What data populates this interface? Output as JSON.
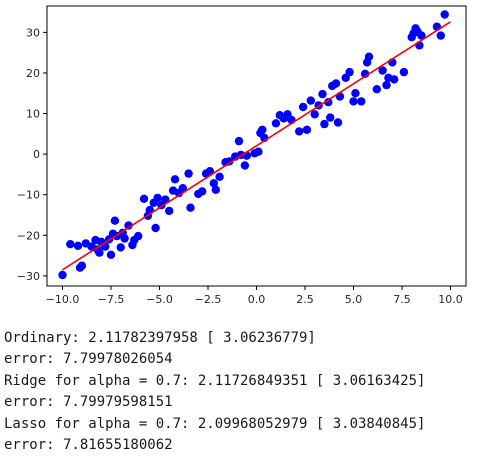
{
  "chart_data": {
    "type": "scatter",
    "title": "",
    "xlabel": "",
    "ylabel": "",
    "xlim": [
      -10.8,
      10.8
    ],
    "ylim": [
      -32.5,
      36.5
    ],
    "x_ticks": [
      -10,
      -7.5,
      -5,
      -2.5,
      0,
      2.5,
      5,
      7.5,
      10
    ],
    "x_tick_labels": [
      "−10.0",
      "−7.5",
      "−5.0",
      "−2.5",
      "0.0",
      "2.5",
      "5.0",
      "7.5",
      "10.0"
    ],
    "y_ticks": [
      -30,
      -20,
      -10,
      0,
      10,
      20,
      30
    ],
    "y_tick_labels": [
      "−30",
      "−20",
      "−10",
      "0",
      "10",
      "20",
      "30"
    ],
    "grid": false,
    "legend": "none",
    "series": [
      {
        "kind": "scatter",
        "color": "#0000ff",
        "points": [
          [
            -10.0,
            -29.8
          ],
          [
            -9.6,
            -22.2
          ],
          [
            -9.2,
            -22.6
          ],
          [
            -9.1,
            -28.0
          ],
          [
            -9.0,
            -27.5
          ],
          [
            -8.8,
            -22.0
          ],
          [
            -8.5,
            -22.8
          ],
          [
            -8.3,
            -21.2
          ],
          [
            -8.2,
            -23.5
          ],
          [
            -8.1,
            -24.3
          ],
          [
            -8.0,
            -21.6
          ],
          [
            -7.8,
            -22.8
          ],
          [
            -7.6,
            -21.0
          ],
          [
            -7.5,
            -24.8
          ],
          [
            -7.4,
            -19.6
          ],
          [
            -7.3,
            -16.4
          ],
          [
            -7.2,
            -20.2
          ],
          [
            -7.0,
            -23.0
          ],
          [
            -6.9,
            -19.4
          ],
          [
            -6.8,
            -20.8
          ],
          [
            -6.6,
            -17.6
          ],
          [
            -6.4,
            -22.4
          ],
          [
            -6.3,
            -21.2
          ],
          [
            -6.1,
            -20.2
          ],
          [
            -5.8,
            -11.0
          ],
          [
            -5.6,
            -15.2
          ],
          [
            -5.5,
            -13.8
          ],
          [
            -5.3,
            -12.0
          ],
          [
            -5.2,
            -18.2
          ],
          [
            -5.1,
            -10.8
          ],
          [
            -4.9,
            -12.6
          ],
          [
            -4.7,
            -11.2
          ],
          [
            -4.5,
            -14.0
          ],
          [
            -4.3,
            -9.0
          ],
          [
            -4.2,
            -6.2
          ],
          [
            -4.0,
            -9.6
          ],
          [
            -3.8,
            -8.4
          ],
          [
            -3.5,
            -4.8
          ],
          [
            -3.4,
            -13.2
          ],
          [
            -3.0,
            -9.8
          ],
          [
            -2.8,
            -9.2
          ],
          [
            -2.6,
            -4.8
          ],
          [
            -2.4,
            -4.2
          ],
          [
            -2.2,
            -7.2
          ],
          [
            -2.1,
            -8.8
          ],
          [
            -1.9,
            -5.6
          ],
          [
            -1.6,
            -2.0
          ],
          [
            -1.4,
            -1.8
          ],
          [
            -1.1,
            -0.6
          ],
          [
            -0.9,
            3.2
          ],
          [
            -0.8,
            -0.2
          ],
          [
            -0.6,
            -2.8
          ],
          [
            -0.5,
            -0.4
          ],
          [
            -0.1,
            0.2
          ],
          [
            0.1,
            0.6
          ],
          [
            0.2,
            5.2
          ],
          [
            0.3,
            6.0
          ],
          [
            0.4,
            4.0
          ],
          [
            1.0,
            7.6
          ],
          [
            1.2,
            9.6
          ],
          [
            1.4,
            8.8
          ],
          [
            1.6,
            9.8
          ],
          [
            1.8,
            8.4
          ],
          [
            2.2,
            5.6
          ],
          [
            2.4,
            11.6
          ],
          [
            2.6,
            6.0
          ],
          [
            2.8,
            13.2
          ],
          [
            3.0,
            9.8
          ],
          [
            3.2,
            12.0
          ],
          [
            3.4,
            14.8
          ],
          [
            3.5,
            7.4
          ],
          [
            3.7,
            12.8
          ],
          [
            3.8,
            9.0
          ],
          [
            3.9,
            16.8
          ],
          [
            4.1,
            17.4
          ],
          [
            4.2,
            7.8
          ],
          [
            4.3,
            14.2
          ],
          [
            4.6,
            18.8
          ],
          [
            4.8,
            20.2
          ],
          [
            5.0,
            13.0
          ],
          [
            5.1,
            15.0
          ],
          [
            5.4,
            13.0
          ],
          [
            5.6,
            19.8
          ],
          [
            5.7,
            22.6
          ],
          [
            5.8,
            24.0
          ],
          [
            6.2,
            16.0
          ],
          [
            6.5,
            20.6
          ],
          [
            6.7,
            17.0
          ],
          [
            6.8,
            18.8
          ],
          [
            7.0,
            22.6
          ],
          [
            7.1,
            18.4
          ],
          [
            7.6,
            20.2
          ],
          [
            8.0,
            28.8
          ],
          [
            8.1,
            29.8
          ],
          [
            8.2,
            31.0
          ],
          [
            8.3,
            30.2
          ],
          [
            8.4,
            26.8
          ],
          [
            8.5,
            29.2
          ],
          [
            9.3,
            31.4
          ],
          [
            9.5,
            29.2
          ],
          [
            9.7,
            34.4
          ]
        ]
      },
      {
        "kind": "line",
        "color": "#ff0000",
        "x": [
          -10.0,
          10.0
        ],
        "y": [
          -28.5,
          32.6
        ]
      }
    ]
  },
  "output_lines": [
    "Ordinary: 2.11782397958 [ 3.06236779]",
    "error: 7.79978026054",
    "Ridge for alpha = 0.7: 2.11726849351 [ 3.06163425]",
    "error: 7.79979598151",
    "Lasso for alpha = 0.7: 2.09968052979 [ 3.03840845]",
    "error: 7.81655180062"
  ]
}
